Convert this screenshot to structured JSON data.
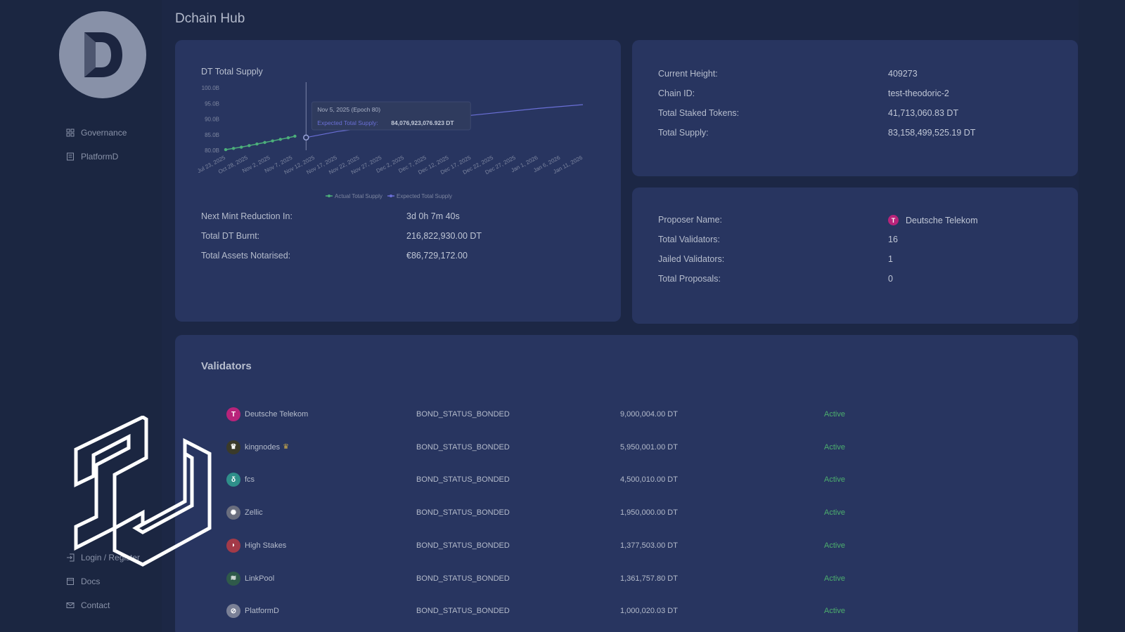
{
  "app": {
    "title": "Dchain Hub",
    "logo_letter": "D"
  },
  "sidebar": {
    "top_items": [
      {
        "label": "Governance",
        "icon": "grid-icon"
      },
      {
        "label": "PlatformD",
        "icon": "document-icon"
      }
    ],
    "bottom_items": [
      {
        "label": "Login / Register",
        "icon": "login-icon"
      },
      {
        "label": "Docs",
        "icon": "docs-icon"
      },
      {
        "label": "Contact",
        "icon": "mail-icon"
      }
    ]
  },
  "supply_card": {
    "stats": [
      {
        "label": "Next Mint Reduction In:",
        "value": "3d 0h 7m 40s"
      },
      {
        "label": "Total DT Burnt:",
        "value": "216,822,930.00 DT"
      },
      {
        "label": "Total Assets Notarised:",
        "value": "€86,729,172.00"
      }
    ]
  },
  "chart_data": {
    "type": "line",
    "title": "DT Total Supply",
    "x": [
      "Jul 23, 2025",
      "Oct 28, 2025",
      "Nov 2, 2025",
      "Nov 7, 2025",
      "Nov 12, 2025",
      "Nov 17, 2025",
      "Nov 22, 2025",
      "Nov 27, 2025",
      "Dec 2, 2025",
      "Dec 7, 2025",
      "Dec 12, 2025",
      "Dec 17, 2025",
      "Dec 22, 2025",
      "Dec 27, 2025",
      "Jan 1, 2026",
      "Jan 6, 2026",
      "Jan 11, 2026"
    ],
    "y_ticks": [
      "100.0B",
      "95.0B",
      "90.0B",
      "85.0B",
      "80.0B"
    ],
    "ylim": [
      80,
      100
    ],
    "series": [
      {
        "name": "Actual Total Supply",
        "color": "#4caf7a",
        "points": [
          [
            0,
            80.2
          ],
          [
            0.35,
            80.6
          ],
          [
            0.7,
            81.0
          ],
          [
            1.05,
            81.5
          ],
          [
            1.4,
            82.0
          ],
          [
            1.75,
            82.5
          ],
          [
            2.1,
            83.0
          ],
          [
            2.45,
            83.5
          ],
          [
            2.8,
            84.0
          ],
          [
            3.1,
            84.5
          ]
        ]
      },
      {
        "name": "Expected Total Supply",
        "color": "#6a6fd6",
        "points": [
          [
            3.6,
            84.08
          ],
          [
            5,
            86.0
          ],
          [
            8,
            88.8
          ],
          [
            11,
            91.2
          ],
          [
            14,
            93.4
          ],
          [
            16,
            94.6
          ]
        ]
      }
    ],
    "tooltip": {
      "title": "Nov 5, 2025 (Epoch 80)",
      "label": "Expected Total Supply:",
      "value": "84,076,923,076.923 DT"
    }
  },
  "chain_card": {
    "stats": [
      {
        "label": "Current Height:",
        "value": "409273"
      },
      {
        "label": "Chain ID:",
        "value": "test-theodoric-2"
      },
      {
        "label": "Total Staked Tokens:",
        "value": "41,713,060.83 DT"
      },
      {
        "label": "Total Supply:",
        "value": "83,158,499,525.19 DT"
      }
    ]
  },
  "proposer_card": {
    "stats": [
      {
        "label": "Proposer Name:",
        "value": "Deutsche Telekom"
      },
      {
        "label": "Total Validators:",
        "value": "16"
      },
      {
        "label": "Jailed Validators:",
        "value": "1"
      },
      {
        "label": "Total Proposals:",
        "value": "0"
      }
    ]
  },
  "validators": {
    "title": "Validators",
    "rows": [
      {
        "name": "Deutsche Telekom",
        "status": "BOND_STATUS_BONDED",
        "tokens": "9,000,004.00 DT",
        "state": "Active",
        "avatar_color": "#b8237a",
        "glyph": "T"
      },
      {
        "name": "kingnodes",
        "status": "BOND_STATUS_BONDED",
        "tokens": "5,950,001.00 DT",
        "state": "Active",
        "avatar_color": "#3a3a2a",
        "glyph": "♛"
      },
      {
        "name": "fcs",
        "status": "BOND_STATUS_BONDED",
        "tokens": "4,500,010.00 DT",
        "state": "Active",
        "avatar_color": "#2f8f8a",
        "glyph": "δ"
      },
      {
        "name": "Zellic",
        "status": "BOND_STATUS_BONDED",
        "tokens": "1,950,000.00 DT",
        "state": "Active",
        "avatar_color": "#6a6e7e",
        "glyph": "✺"
      },
      {
        "name": "High Stakes",
        "status": "BOND_STATUS_BONDED",
        "tokens": "1,377,503.00 DT",
        "state": "Active",
        "avatar_color": "#a33a48",
        "glyph": "◗"
      },
      {
        "name": "LinkPool",
        "status": "BOND_STATUS_BONDED",
        "tokens": "1,361,757.80 DT",
        "state": "Active",
        "avatar_color": "#2f5a4a",
        "glyph": "≋"
      },
      {
        "name": "PlatformD",
        "status": "BOND_STATUS_BONDED",
        "tokens": "1,000,020.03 DT",
        "state": "Active",
        "avatar_color": "#7a8096",
        "glyph": "⊘"
      }
    ]
  }
}
